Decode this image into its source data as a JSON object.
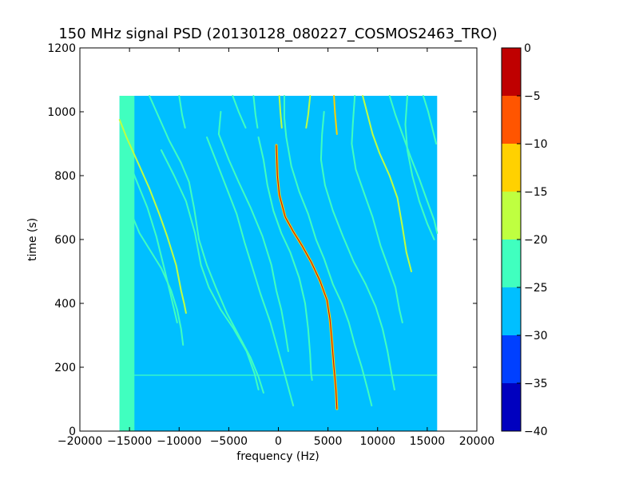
{
  "chart_data": {
    "type": "heatmap",
    "title": "150 MHz signal PSD (20130128_080227_COSMOS2463_TRO)",
    "xlabel": "frequency (Hz)",
    "ylabel": "time (s)",
    "xlim": [
      -20000,
      20000
    ],
    "ylim": [
      0,
      1200
    ],
    "x_ticks": [
      -20000,
      -15000,
      -10000,
      -5000,
      0,
      5000,
      10000,
      15000,
      20000
    ],
    "y_ticks": [
      0,
      200,
      400,
      600,
      800,
      1000,
      1200
    ],
    "data_extent": {
      "x": [
        -16000,
        16000
      ],
      "y": [
        0,
        1050
      ]
    },
    "background_level": -27.5,
    "grid": false,
    "colorbar": {
      "levels": [
        -40,
        -35,
        -30,
        -25,
        -20,
        -15,
        -10,
        -5,
        0
      ],
      "colors": [
        "#0000bf",
        "#0040ff",
        "#00bfff",
        "#40ffbf",
        "#bfff40",
        "#ffd100",
        "#ff5500",
        "#bf0000"
      ],
      "tick_labels": [
        "0",
        "−5",
        "−10",
        "−15",
        "−20",
        "−25",
        "−30",
        "−35",
        "−40"
      ]
    },
    "features": [
      {
        "name": "band",
        "points": [
          [
            -16000,
            0
          ],
          [
            -14500,
            0
          ],
          [
            -14500,
            1050
          ],
          [
            -16000,
            1050
          ]
        ],
        "level": -22.5
      },
      {
        "name": "horizontal-line",
        "points": [
          [
            -14500,
            175
          ],
          [
            16000,
            175
          ]
        ],
        "level": -22.5
      },
      {
        "name": "main-trace",
        "points": [
          [
            -200,
            895
          ],
          [
            -100,
            800
          ],
          [
            100,
            740
          ],
          [
            700,
            670
          ],
          [
            1500,
            625
          ],
          [
            2400,
            580
          ],
          [
            3300,
            530
          ],
          [
            4200,
            470
          ],
          [
            4900,
            410
          ],
          [
            5200,
            350
          ],
          [
            5400,
            280
          ],
          [
            5600,
            200
          ],
          [
            5800,
            130
          ],
          [
            5900,
            70
          ]
        ],
        "level": -12.5,
        "core_level": -2.5
      },
      {
        "name": "main-upper",
        "points": [
          [
            5600,
            1050
          ],
          [
            5700,
            1000
          ],
          [
            5900,
            930
          ]
        ],
        "level": -12.5
      },
      {
        "name": "trace-a1",
        "points": [
          [
            -16000,
            975
          ],
          [
            -15300,
            920
          ],
          [
            -14000,
            830
          ],
          [
            -13000,
            760
          ],
          [
            -12000,
            680
          ],
          [
            -11200,
            610
          ],
          [
            -10300,
            520
          ],
          [
            -9800,
            440
          ],
          [
            -9500,
            400
          ],
          [
            -9300,
            370
          ]
        ],
        "level": -17.5
      },
      {
        "name": "trace-a2",
        "points": [
          [
            -7200,
            920
          ],
          [
            -6200,
            840
          ],
          [
            -5200,
            760
          ],
          [
            -4200,
            680
          ],
          [
            -3400,
            590
          ],
          [
            -2700,
            520
          ],
          [
            -1800,
            430
          ],
          [
            -800,
            340
          ],
          [
            0,
            250
          ],
          [
            800,
            160
          ],
          [
            1500,
            80
          ]
        ],
        "level": -22.5
      },
      {
        "name": "trace-a3",
        "points": [
          [
            -4600,
            1050
          ],
          [
            -4000,
            1000
          ],
          [
            -3300,
            950
          ]
        ],
        "level": -22.5
      },
      {
        "name": "trace-b1",
        "points": [
          [
            -14800,
            680
          ],
          [
            -14000,
            620
          ],
          [
            -13000,
            570
          ],
          [
            -11800,
            510
          ],
          [
            -10800,
            440
          ],
          [
            -10200,
            380
          ],
          [
            -9800,
            320
          ],
          [
            -9600,
            270
          ]
        ],
        "level": -22.5
      },
      {
        "name": "trace-b2",
        "points": [
          [
            -13000,
            1050
          ],
          [
            -12000,
            980
          ],
          [
            -11000,
            910
          ],
          [
            -9800,
            840
          ],
          [
            -9000,
            780
          ],
          [
            -8500,
            700
          ],
          [
            -8000,
            600
          ],
          [
            -7200,
            520
          ],
          [
            -6300,
            450
          ],
          [
            -5200,
            370
          ],
          [
            -4000,
            300
          ],
          [
            -2800,
            230
          ],
          [
            -2000,
            170
          ],
          [
            -1500,
            120
          ]
        ],
        "level": -22.5
      },
      {
        "name": "trace-b3",
        "points": [
          [
            -5800,
            1000
          ],
          [
            -6000,
            930
          ],
          [
            -5000,
            850
          ],
          [
            -4000,
            780
          ],
          [
            -2800,
            700
          ],
          [
            -1600,
            610
          ],
          [
            -700,
            520
          ],
          [
            -200,
            440
          ],
          [
            300,
            380
          ],
          [
            700,
            310
          ],
          [
            1000,
            250
          ]
        ],
        "level": -22.5
      },
      {
        "name": "trace-c1",
        "points": [
          [
            -15500,
            880
          ],
          [
            -14500,
            800
          ],
          [
            -13200,
            700
          ],
          [
            -12300,
            610
          ],
          [
            -11500,
            510
          ],
          [
            -10800,
            420
          ],
          [
            -10200,
            340
          ]
        ],
        "level": -22.5
      },
      {
        "name": "trace-c2",
        "points": [
          [
            -11800,
            880
          ],
          [
            -10500,
            800
          ],
          [
            -9300,
            720
          ],
          [
            -8400,
            620
          ],
          [
            -7800,
            520
          ],
          [
            -7000,
            450
          ],
          [
            -5800,
            380
          ],
          [
            -4500,
            320
          ],
          [
            -3200,
            250
          ],
          [
            -2400,
            180
          ],
          [
            -2000,
            130
          ]
        ],
        "level": -22.5
      },
      {
        "name": "trace-c3",
        "points": [
          [
            -2000,
            920
          ],
          [
            -1500,
            850
          ],
          [
            -1100,
            770
          ],
          [
            -500,
            690
          ],
          [
            300,
            620
          ],
          [
            1200,
            560
          ],
          [
            2100,
            480
          ],
          [
            2700,
            400
          ],
          [
            3000,
            320
          ],
          [
            3200,
            240
          ],
          [
            3300,
            180
          ],
          [
            3400,
            160
          ]
        ],
        "level": -22.5
      },
      {
        "name": "trace-c4",
        "points": [
          [
            600,
            1050
          ],
          [
            600,
            980
          ],
          [
            800,
            920
          ],
          [
            1300,
            830
          ],
          [
            2100,
            750
          ],
          [
            3000,
            680
          ],
          [
            3800,
            600
          ],
          [
            4600,
            540
          ],
          [
            5500,
            460
          ],
          [
            6400,
            400
          ],
          [
            7100,
            340
          ],
          [
            7700,
            270
          ],
          [
            8400,
            200
          ],
          [
            9000,
            130
          ],
          [
            9400,
            80
          ]
        ],
        "level": -22.5
      },
      {
        "name": "trace-c5",
        "points": [
          [
            3200,
            1050
          ],
          [
            3000,
            990
          ],
          [
            2800,
            950
          ]
        ],
        "level": -17.5
      },
      {
        "name": "trace-c6",
        "points": [
          [
            4600,
            1000
          ],
          [
            4400,
            930
          ],
          [
            4300,
            850
          ],
          [
            4700,
            770
          ],
          [
            5500,
            690
          ],
          [
            6500,
            610
          ],
          [
            7600,
            530
          ],
          [
            8800,
            460
          ],
          [
            9800,
            390
          ],
          [
            10500,
            320
          ],
          [
            11000,
            250
          ],
          [
            11400,
            180
          ],
          [
            11700,
            130
          ]
        ],
        "level": -22.5
      },
      {
        "name": "trace-c7",
        "points": [
          [
            7700,
            1050
          ],
          [
            7500,
            960
          ],
          [
            7400,
            900
          ],
          [
            7800,
            820
          ],
          [
            8700,
            740
          ],
          [
            9500,
            670
          ],
          [
            10300,
            580
          ],
          [
            11000,
            520
          ],
          [
            11800,
            450
          ],
          [
            12200,
            380
          ],
          [
            12500,
            340
          ]
        ],
        "level": -22.5
      },
      {
        "name": "trace-c8",
        "points": [
          [
            8500,
            1050
          ],
          [
            9000,
            990
          ],
          [
            9500,
            930
          ],
          [
            10200,
            870
          ],
          [
            11200,
            800
          ],
          [
            12000,
            730
          ],
          [
            12500,
            640
          ],
          [
            12900,
            560
          ],
          [
            13400,
            500
          ]
        ],
        "level": -17.5
      },
      {
        "name": "trace-c9",
        "points": [
          [
            13000,
            1050
          ],
          [
            12800,
            960
          ],
          [
            13000,
            880
          ],
          [
            13500,
            800
          ],
          [
            14200,
            720
          ],
          [
            15000,
            650
          ],
          [
            15700,
            600
          ]
        ],
        "level": -22.5
      },
      {
        "name": "trace-c10",
        "points": [
          [
            11200,
            1050
          ],
          [
            11800,
            990
          ],
          [
            12500,
            930
          ],
          [
            13300,
            860
          ],
          [
            14200,
            790
          ],
          [
            15000,
            720
          ],
          [
            15700,
            660
          ],
          [
            16000,
            620
          ]
        ],
        "level": -22.5
      },
      {
        "name": "trace-c11",
        "points": [
          [
            14600,
            1050
          ],
          [
            15100,
            1000
          ],
          [
            15500,
            950
          ],
          [
            15900,
            900
          ]
        ],
        "level": -22.5
      },
      {
        "name": "trace-c12",
        "points": [
          [
            -10000,
            1050
          ],
          [
            -9700,
            990
          ],
          [
            -9400,
            950
          ]
        ],
        "level": -22.5
      },
      {
        "name": "trace-c13",
        "points": [
          [
            100,
            1050
          ],
          [
            200,
            1000
          ],
          [
            350,
            950
          ]
        ],
        "level": -17.5
      },
      {
        "name": "trace-c14",
        "points": [
          [
            -2500,
            1050
          ],
          [
            -2300,
            990
          ],
          [
            -2100,
            950
          ]
        ],
        "level": -22.5
      }
    ]
  }
}
